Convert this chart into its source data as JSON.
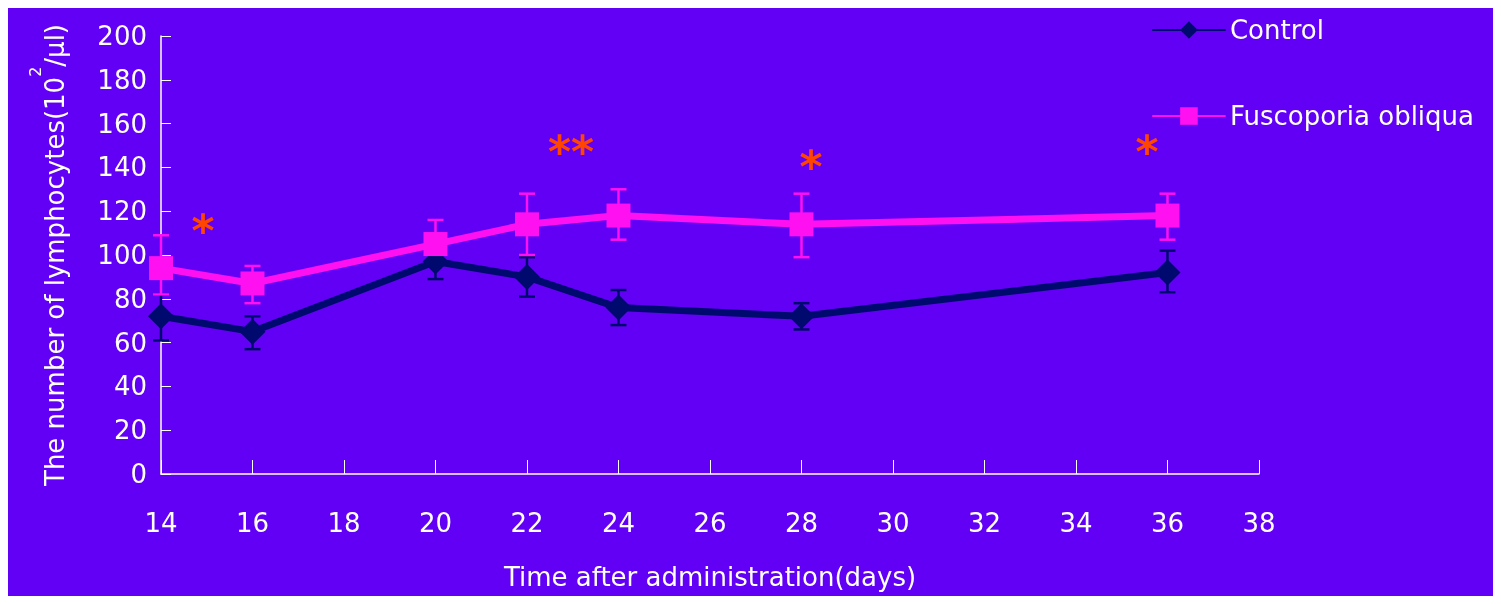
{
  "chart_data": {
    "type": "line",
    "xlabel": "Time after administration(days)",
    "ylabel": "The number of lymphocytes(10$^{2}$/μl)",
    "x": [
      14,
      16,
      20,
      22,
      24,
      28,
      36
    ],
    "xlim": [
      14,
      38
    ],
    "xticks": [
      14,
      16,
      18,
      20,
      22,
      24,
      26,
      28,
      30,
      32,
      34,
      36,
      38
    ],
    "ylim": [
      0,
      200
    ],
    "yticks": [
      0,
      20,
      40,
      60,
      80,
      100,
      120,
      140,
      160,
      180,
      200
    ],
    "grid": false,
    "legend": "top right",
    "line_style": "solid",
    "series": [
      {
        "name": "Control",
        "color": "#000a6e",
        "marker": "diamond",
        "values": [
          72,
          65,
          97,
          90,
          76,
          72,
          92
        ],
        "errors": [
          [
            61,
            82
          ],
          [
            57,
            72
          ],
          [
            89,
            97
          ],
          [
            81,
            99
          ],
          [
            68,
            84
          ],
          [
            66,
            78
          ],
          [
            83,
            102
          ]
        ]
      },
      {
        "name": "Fuscoporia obliqua",
        "color": "#ff10f0",
        "marker": "square",
        "values": [
          94,
          87,
          105,
          114,
          118,
          114,
          118
        ],
        "errors": [
          [
            82,
            109
          ],
          [
            78,
            95
          ],
          [
            105,
            116
          ],
          [
            100,
            128
          ],
          [
            107,
            130
          ],
          [
            99,
            128
          ],
          [
            107,
            128
          ]
        ]
      }
    ],
    "annotations": [
      "*",
      "**",
      "*",
      "*"
    ]
  }
}
